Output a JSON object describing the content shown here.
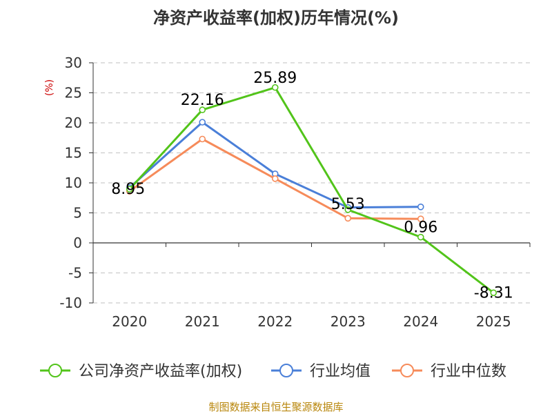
{
  "chart_data": {
    "type": "line",
    "title": "净资产收益率(加权)历年情况(%)",
    "yunit": "(%)",
    "categories": [
      "2020",
      "2021",
      "2022",
      "2023",
      "2024",
      "2025"
    ],
    "ylim": [
      -10,
      30
    ],
    "yticks": [
      30,
      25,
      20,
      15,
      10,
      5,
      0,
      -5,
      -10
    ],
    "grid": true,
    "legend_position": "bottom",
    "series": [
      {
        "name": "公司净资产收益率(加权)",
        "color": "#52c41a",
        "values": [
          8.95,
          22.16,
          25.89,
          5.53,
          0.96,
          -8.31
        ]
      },
      {
        "name": "行业均值",
        "color": "#4a7fd8",
        "values": [
          9.2,
          20.1,
          11.5,
          5.9,
          6.0,
          null
        ]
      },
      {
        "name": "行业中位数",
        "color": "#f68b5a",
        "values": [
          8.6,
          17.3,
          10.7,
          4.1,
          4.0,
          null
        ]
      }
    ],
    "data_labels": [
      "8.95",
      "22.16",
      "25.89",
      "5.53",
      "0.96",
      "-8.31"
    ]
  },
  "footer": {
    "source": "制图数据来自恒生聚源数据库"
  }
}
